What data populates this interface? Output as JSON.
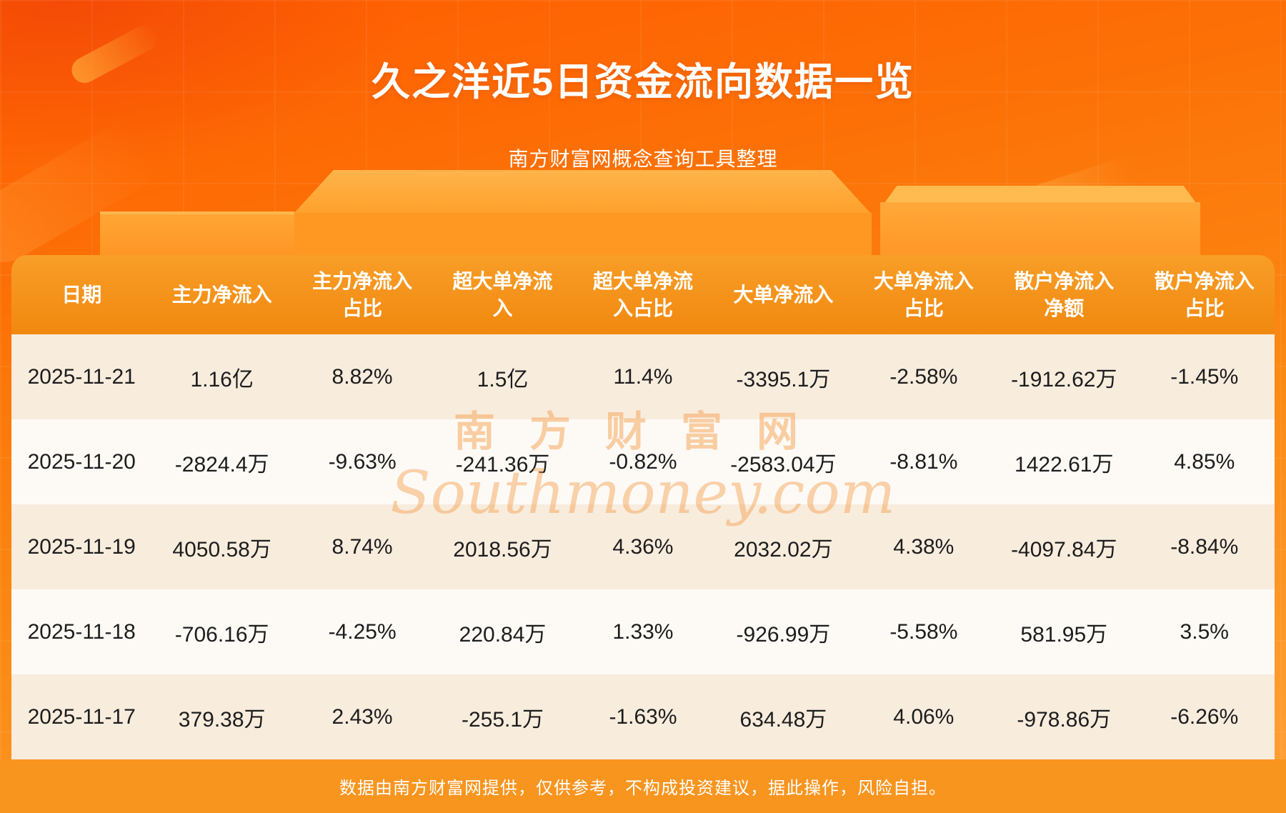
{
  "page": {
    "title": "久之洋近5日资金流向数据一览",
    "subtitle": "南方财富网概念查询工具整理",
    "footer": "数据由南方财富网提供，仅供参考，不构成投资建议，据此操作，风险自担。",
    "watermark_cn": "南方财富网",
    "watermark_en": "Southmoney.com"
  },
  "colors": {
    "background_top": "#ff5c00",
    "background_bottom": "#ffa238",
    "table_header": "#f38d12",
    "row_odd": "#f8ecdd",
    "row_even": "#fdfaf6",
    "footer_bar": "#f8951f",
    "title_text": "#ffffff",
    "cell_text": "#1d1d1d"
  },
  "chart_data": {
    "type": "table",
    "title": "久之洋近5日资金流向数据一览",
    "columns": [
      "日期",
      "主力净流入",
      "主力净流入占比",
      "超大单净流入",
      "超大单净流入占比",
      "大单净流入",
      "大单净流入占比",
      "散户净流入净额",
      "散户净流入占比"
    ],
    "rows": [
      [
        "2025-11-21",
        "1.16亿",
        "8.82%",
        "1.5亿",
        "11.4%",
        "-3395.1万",
        "-2.58%",
        "-1912.62万",
        "-1.45%"
      ],
      [
        "2025-11-20",
        "-2824.4万",
        "-9.63%",
        "-241.36万",
        "-0.82%",
        "-2583.04万",
        "-8.81%",
        "1422.61万",
        "4.85%"
      ],
      [
        "2025-11-19",
        "4050.58万",
        "8.74%",
        "2018.56万",
        "4.36%",
        "2032.02万",
        "4.38%",
        "-4097.84万",
        "-8.84%"
      ],
      [
        "2025-11-18",
        "-706.16万",
        "-4.25%",
        "220.84万",
        "1.33%",
        "-926.99万",
        "-5.58%",
        "581.95万",
        "3.5%"
      ],
      [
        "2025-11-17",
        "379.38万",
        "2.43%",
        "-255.1万",
        "-1.63%",
        "634.48万",
        "4.06%",
        "-978.86万",
        "-6.26%"
      ]
    ]
  }
}
